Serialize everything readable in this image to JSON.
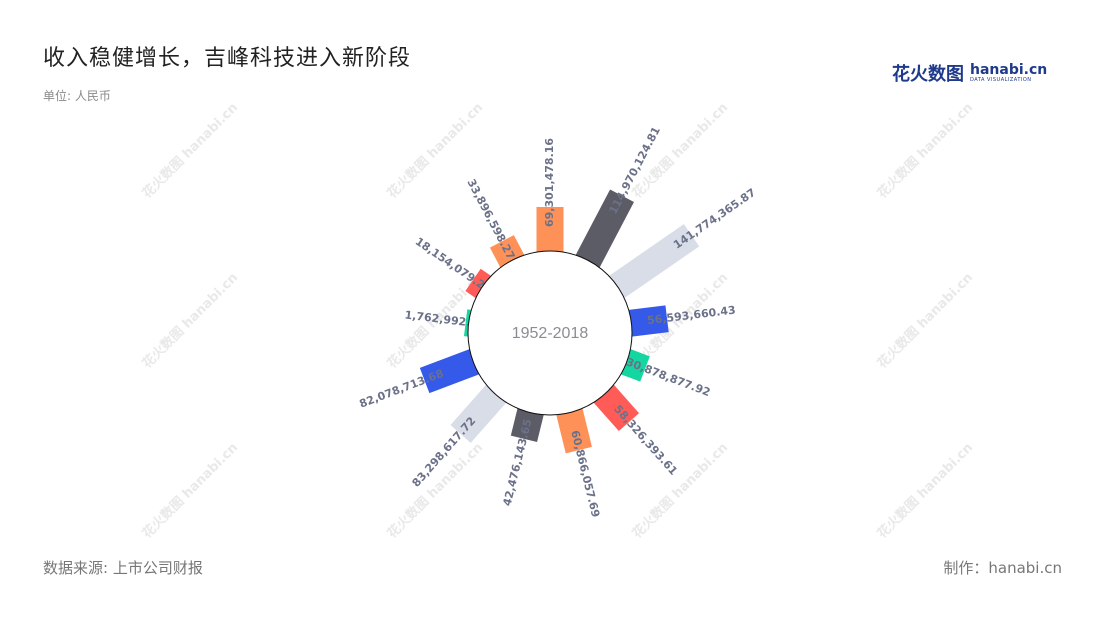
{
  "header": {
    "title": "收入稳健增长，吉峰科技进入新阶段",
    "unit": "单位: 人民币"
  },
  "footer": {
    "source": "数据来源: 上市公司财报",
    "credit": "制作：hanabi.cn"
  },
  "logo": {
    "cn": "花火数图",
    "en": "hanabi.cn",
    "sub": "DATA VISUALIZATION"
  },
  "watermark": "花火数图 hanabi.cn",
  "colors": [
    "#fe9157",
    "#5b5c66",
    "#d9dde8",
    "#3559e9",
    "#13d6a0",
    "#ff5b57"
  ],
  "chart_data": {
    "type": "bar",
    "layout": "radial",
    "center_label": "1952-2018",
    "labels": [
      "69,301,478.16",
      "114,970,124.81",
      "141,774,365.87",
      "56,593,660.43",
      "30,878,877.92",
      "58,326,393.61",
      "60,866,057.69",
      "42,476,143.65",
      "83,298,617.72",
      "82,078,713.68",
      "1,762,992.19",
      "18,154,079.27",
      "33,896,598.27"
    ],
    "values": [
      69301478.16,
      114970124.81,
      141774365.87,
      56593660.43,
      30878877.92,
      58326393.61,
      60866057.69,
      42476143.65,
      83298617.72,
      82078713.68,
      1762992.19,
      18154079.27,
      33896598.27
    ]
  }
}
